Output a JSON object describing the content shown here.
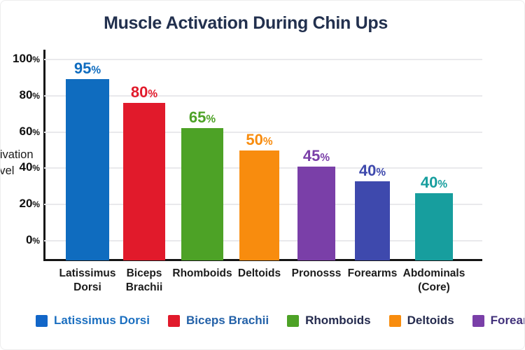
{
  "page": {
    "title": "Muscle Activation During Chin Ups"
  },
  "chart_data": {
    "type": "bar",
    "title": "Muscle Activation During Chin Ups",
    "xlabel": "",
    "ylabel": "Activation Level",
    "ylim": [
      0,
      100
    ],
    "grid": true,
    "legend_position": "bottom",
    "y_tick_labels": [
      "100%",
      "80%",
      "60%",
      "40%",
      "20%",
      "0%"
    ],
    "categories": [
      "Latissimus Dorsi",
      "Biceps Brachii",
      "Rhomboids",
      "Deltoids",
      "Pronosss",
      "Forearms",
      "Abdominals (Core)"
    ],
    "values": [
      95,
      80,
      65,
      50,
      45,
      40,
      40
    ],
    "bars": [
      {
        "category_lines": [
          "Latissimus",
          "Dorsi"
        ],
        "value_label": "95%",
        "color": "#0f6cbf"
      },
      {
        "category_lines": [
          "Biceps",
          "Brachii"
        ],
        "value_label": "80%",
        "color": "#e11a2b"
      },
      {
        "category_lines": [
          "Rhomboids"
        ],
        "value_label": "65%",
        "color": "#4da226"
      },
      {
        "category_lines": [
          "Deltoids"
        ],
        "value_label": "50%",
        "color": "#f88c0e"
      },
      {
        "category_lines": [
          "Pronosss"
        ],
        "value_label": "45%",
        "color": "#7a3fa8"
      },
      {
        "category_lines": [
          "Forearms"
        ],
        "value_label": "40%",
        "color": "#3e49ad"
      },
      {
        "category_lines": [
          "Abdominals",
          "(Core)"
        ],
        "value_label": "40%",
        "color": "#179e9e"
      }
    ]
  },
  "y_axis": {
    "label_line1": "Activation",
    "label_line2": "Level"
  },
  "legend": {
    "items": [
      {
        "label": "Latissimus Dorsi",
        "swatch": "#1266c8",
        "text_color": "#1b6fc0"
      },
      {
        "label": "Biceps Brachii",
        "swatch": "#e11a2b",
        "text_color": "#2361a8"
      },
      {
        "label": "Rhomboids",
        "swatch": "#4da226",
        "text_color": "#252b4e"
      },
      {
        "label": "Deltoids",
        "swatch": "#f88c0e",
        "text_color": "#252b4e"
      },
      {
        "label": "Forearms",
        "swatch": "#7a3fa8",
        "text_color": "#40307a"
      }
    ]
  }
}
